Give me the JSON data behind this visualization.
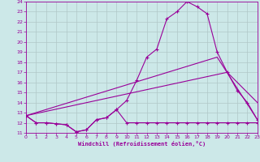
{
  "xlabel": "Windchill (Refroidissement éolien,°C)",
  "xlim": [
    0,
    23
  ],
  "ylim": [
    11,
    24
  ],
  "yticks": [
    11,
    12,
    13,
    14,
    15,
    16,
    17,
    18,
    19,
    20,
    21,
    22,
    23,
    24
  ],
  "xticks": [
    0,
    1,
    2,
    3,
    4,
    5,
    6,
    7,
    8,
    9,
    10,
    11,
    12,
    13,
    14,
    15,
    16,
    17,
    18,
    19,
    20,
    21,
    22,
    23
  ],
  "bg_color": "#cce8e8",
  "line_color": "#990099",
  "grid_color": "#b0c8c8",
  "curve1_x": [
    0,
    1,
    2,
    3,
    4,
    5,
    6,
    7,
    8,
    9,
    10,
    11,
    12,
    13,
    14,
    15,
    16,
    17,
    18,
    19,
    20,
    21,
    22,
    23
  ],
  "curve1_y": [
    12.7,
    12.0,
    12.0,
    11.9,
    11.8,
    11.1,
    11.3,
    12.3,
    12.5,
    13.3,
    14.2,
    16.2,
    18.5,
    19.3,
    22.3,
    23.0,
    24.0,
    23.5,
    22.8,
    19.0,
    17.0,
    15.2,
    14.0,
    12.3
  ],
  "curve2_x": [
    0,
    1,
    2,
    3,
    4,
    5,
    6,
    7,
    8,
    9,
    10,
    11,
    12,
    13,
    14,
    15,
    16,
    17,
    18,
    19,
    20,
    21,
    22,
    23
  ],
  "curve2_y": [
    12.7,
    12.0,
    12.0,
    11.9,
    11.8,
    11.1,
    11.3,
    12.3,
    12.5,
    13.3,
    12.0,
    12.0,
    12.0,
    12.0,
    12.0,
    12.0,
    12.0,
    12.0,
    12.0,
    12.0,
    12.0,
    12.0,
    12.0,
    12.0
  ],
  "curve3_x": [
    0,
    19,
    23
  ],
  "curve3_y": [
    12.7,
    18.5,
    12.3
  ],
  "curve4_x": [
    0,
    20,
    23
  ],
  "curve4_y": [
    12.7,
    17.0,
    14.0
  ]
}
